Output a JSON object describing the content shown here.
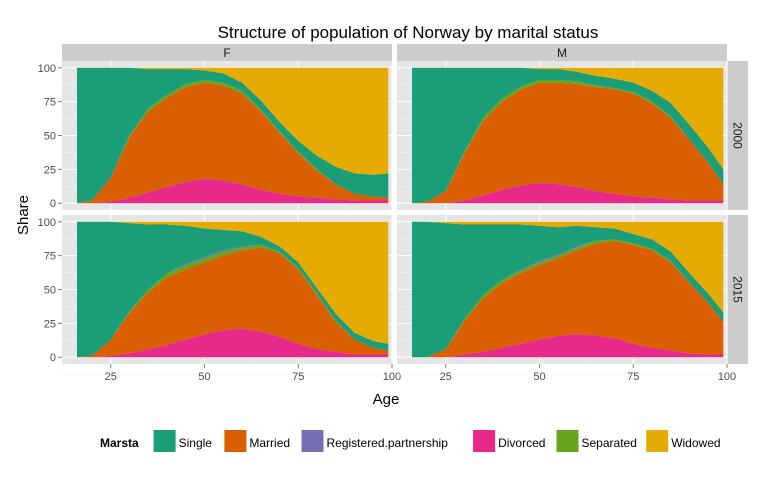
{
  "chart_data": {
    "type": "area",
    "title": "Structure of population of Norway by marital status",
    "xlabel": "Age",
    "ylabel": "Share",
    "xlim": [
      12,
      100
    ],
    "ylim": [
      -5,
      105
    ],
    "x_ticks": [
      25,
      50,
      75,
      100
    ],
    "y_ticks": [
      0,
      25,
      50,
      75,
      100
    ],
    "columns": [
      "F",
      "M"
    ],
    "rows": [
      "2000",
      "2015"
    ],
    "legend": {
      "title": "Marsta",
      "position": "bottom",
      "items": [
        {
          "name": "Single",
          "color": "#1b9e77"
        },
        {
          "name": "Married",
          "color": "#d95f02"
        },
        {
          "name": "Registered.partnership",
          "color": "#7570b3"
        },
        {
          "name": "Divorced",
          "color": "#e7298a"
        },
        {
          "name": "Separated",
          "color": "#66a61e"
        },
        {
          "name": "Widowed",
          "color": "#e6ab02"
        }
      ]
    },
    "stack_order_bottom_to_top": [
      "Divorced",
      "Married",
      "Separated",
      "Registered.partnership",
      "Single",
      "Widowed"
    ],
    "x": [
      16,
      20,
      25,
      30,
      35,
      40,
      45,
      50,
      55,
      60,
      65,
      70,
      75,
      80,
      85,
      90,
      95,
      99
    ],
    "panels": [
      {
        "column": "F",
        "row": "2000",
        "series": [
          {
            "name": "Divorced",
            "values": [
              0,
              0,
              1,
              4,
              8,
              12,
              16,
              18,
              17,
              14,
              10,
              7,
              5,
              4,
              3,
              2,
              2,
              2
            ]
          },
          {
            "name": "Married",
            "values": [
              0,
              2,
              18,
              45,
              60,
              66,
              70,
              71,
              70,
              67,
              58,
              45,
              32,
              20,
              11,
              5,
              3,
              2
            ]
          },
          {
            "name": "Separated",
            "values": [
              0,
              0,
              0,
              1,
              2,
              2,
              2,
              2,
              2,
              2,
              1,
              1,
              1,
              1,
              0,
              0,
              0,
              0
            ]
          },
          {
            "name": "Registered.partnership",
            "values": [
              0,
              0,
              0,
              0,
              0,
              0,
              0,
              0,
              0,
              0,
              0,
              0,
              0,
              0,
              0,
              0,
              0,
              0
            ]
          },
          {
            "name": "Single",
            "values": [
              100,
              98,
              81,
              50,
              29,
              19,
              11,
              7,
              7,
              6,
              7,
              7,
              8,
              10,
              13,
              15,
              16,
              18
            ]
          },
          {
            "name": "Widowed",
            "values": [
              0,
              0,
              0,
              0,
              1,
              1,
              1,
              2,
              4,
              11,
              24,
              40,
              54,
              65,
              73,
              78,
              79,
              78
            ]
          }
        ]
      },
      {
        "column": "M",
        "row": "2000",
        "series": [
          {
            "name": "Divorced",
            "values": [
              0,
              0,
              0,
              2,
              6,
              10,
              13,
              15,
              14,
              12,
              9,
              7,
              5,
              4,
              3,
              2,
              2,
              2
            ]
          },
          {
            "name": "Married",
            "values": [
              0,
              1,
              9,
              35,
              55,
              65,
              71,
              74,
              75,
              76,
              77,
              77,
              76,
              70,
              60,
              45,
              28,
              12
            ]
          },
          {
            "name": "Separated",
            "values": [
              0,
              0,
              0,
              1,
              2,
              2,
              2,
              2,
              2,
              2,
              1,
              1,
              1,
              1,
              1,
              0,
              0,
              0
            ]
          },
          {
            "name": "Registered.partnership",
            "values": [
              0,
              0,
              0,
              0,
              0,
              0,
              0,
              0,
              0,
              0,
              0,
              0,
              0,
              0,
              0,
              0,
              0,
              0
            ]
          },
          {
            "name": "Single",
            "values": [
              100,
              99,
              91,
              62,
              37,
              23,
              14,
              8,
              8,
              7,
              7,
              7,
              7,
              8,
              10,
              11,
              11,
              11
            ]
          },
          {
            "name": "Widowed",
            "values": [
              0,
              0,
              0,
              0,
              0,
              0,
              0,
              1,
              1,
              3,
              6,
              8,
              11,
              17,
              26,
              42,
              59,
              75
            ]
          }
        ]
      },
      {
        "column": "F",
        "row": "2015",
        "series": [
          {
            "name": "Divorced",
            "values": [
              0,
              0,
              1,
              3,
              6,
              9,
              13,
              17,
              20,
              21,
              19,
              15,
              10,
              6,
              4,
              2,
              2,
              2
            ]
          },
          {
            "name": "Married",
            "values": [
              0,
              1,
              12,
              30,
              42,
              50,
              52,
              53,
              55,
              58,
              62,
              62,
              55,
              40,
              22,
              11,
              5,
              3
            ]
          },
          {
            "name": "Separated",
            "values": [
              0,
              0,
              0,
              1,
              2,
              3,
              3,
              3,
              3,
              2,
              2,
              1,
              1,
              1,
              1,
              0,
              0,
              0
            ]
          },
          {
            "name": "Registered.partnership",
            "values": [
              0,
              0,
              0,
              0,
              0,
              0,
              1,
              1,
              1,
              1,
              0,
              0,
              0,
              0,
              0,
              0,
              0,
              0
            ]
          },
          {
            "name": "Single",
            "values": [
              100,
              99,
              87,
              65,
              48,
              36,
              28,
              21,
              15,
              11,
              6,
              4,
              4,
              4,
              5,
              5,
              5,
              5
            ]
          },
          {
            "name": "Widowed",
            "values": [
              0,
              0,
              0,
              1,
              2,
              2,
              3,
              5,
              6,
              7,
              11,
              18,
              30,
              49,
              68,
              82,
              88,
              90
            ]
          }
        ]
      },
      {
        "column": "M",
        "row": "2015",
        "series": [
          {
            "name": "Divorced",
            "values": [
              0,
              0,
              0,
              2,
              4,
              7,
              10,
              13,
              16,
              17,
              16,
              14,
              10,
              7,
              5,
              3,
              2,
              2
            ]
          },
          {
            "name": "Married",
            "values": [
              0,
              0,
              6,
              25,
              40,
              48,
              52,
              55,
              57,
              62,
              68,
              72,
              73,
              72,
              65,
              52,
              38,
              24
            ]
          },
          {
            "name": "Separated",
            "values": [
              0,
              0,
              0,
              1,
              2,
              2,
              2,
              2,
              2,
              2,
              2,
              1,
              1,
              1,
              1,
              0,
              0,
              0
            ]
          },
          {
            "name": "Registered.partnership",
            "values": [
              0,
              0,
              0,
              0,
              0,
              0,
              1,
              1,
              1,
              1,
              0,
              0,
              0,
              0,
              0,
              0,
              0,
              0
            ]
          },
          {
            "name": "Single",
            "values": [
              100,
              100,
              93,
              70,
              52,
              41,
              33,
              26,
              20,
              15,
              10,
              8,
              7,
              7,
              7,
              7,
              7,
              7
            ]
          },
          {
            "name": "Widowed",
            "values": [
              0,
              0,
              1,
              2,
              2,
              2,
              2,
              3,
              4,
              3,
              4,
              5,
              9,
              13,
              22,
              38,
              53,
              67
            ]
          }
        ]
      }
    ]
  }
}
